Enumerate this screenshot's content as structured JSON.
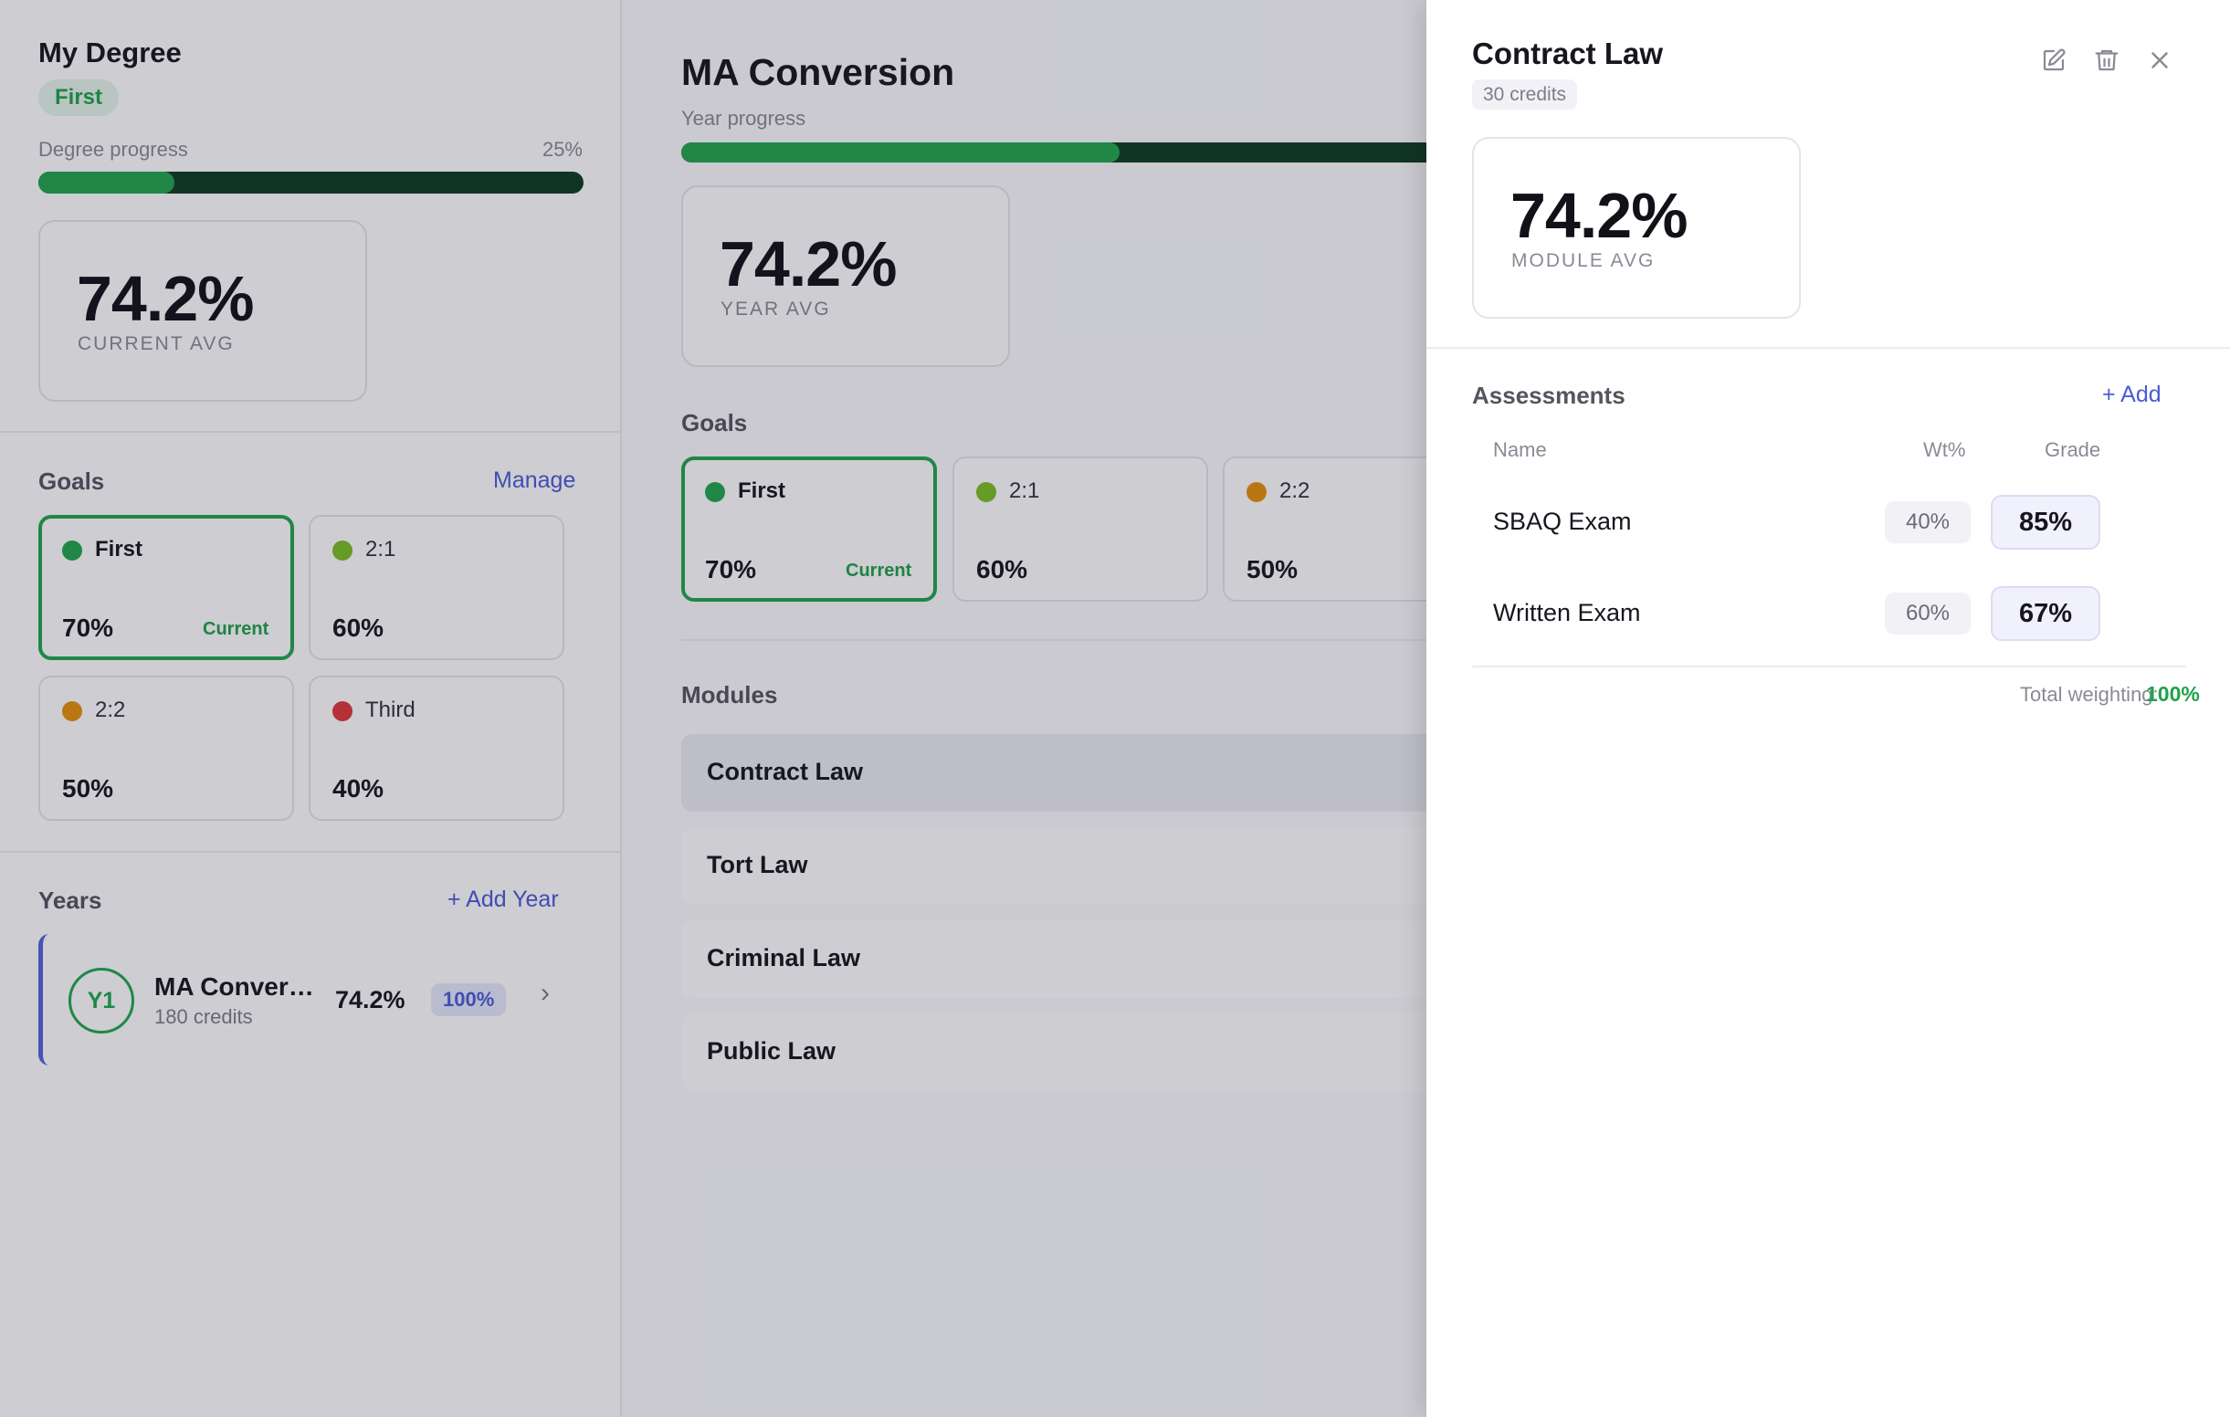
{
  "sidebar": {
    "title": "My Degree",
    "classification": "First",
    "progress_label": "Degree progress",
    "progress_pct": "25%",
    "progress_value": 25,
    "avg_value": "74.2%",
    "avg_label": "CURRENT AVG",
    "goals_title": "Goals",
    "manage_label": "Manage",
    "goals": [
      {
        "name": "First",
        "pct": "70%",
        "current": "Current",
        "color": "#22a64c"
      },
      {
        "name": "2:1",
        "pct": "60%",
        "color": "#7cbf22"
      },
      {
        "name": "2:2",
        "pct": "50%",
        "color": "#e8900c"
      },
      {
        "name": "Third",
        "pct": "40%",
        "color": "#e0383a"
      }
    ],
    "years_title": "Years",
    "add_year_label": "+ Add Year",
    "years": [
      {
        "badge": "Y1",
        "name": "MA Conver…",
        "credits": "180 credits",
        "avg": "74.2%",
        "weight": "100%"
      }
    ]
  },
  "main": {
    "title": "MA Conversion",
    "progress_label": "Year progress",
    "progress_value": 50,
    "avg_value": "74.2%",
    "avg_label": "YEAR AVG",
    "goals_title": "Goals",
    "goals": [
      {
        "name": "First",
        "pct": "70%",
        "current": "Current",
        "color": "#22a64c"
      },
      {
        "name": "2:1",
        "pct": "60%",
        "color": "#7cbf22"
      },
      {
        "name": "2:2",
        "pct": "50%",
        "color": "#e8900c"
      }
    ],
    "modules_title": "Modules",
    "modules": [
      "Contract Law",
      "Tort Law",
      "Criminal Law",
      "Public Law"
    ]
  },
  "drawer": {
    "title": "Contract Law",
    "credits": "30 credits",
    "avg_value": "74.2%",
    "avg_label": "MODULE AVG",
    "assessments_title": "Assessments",
    "add_label": "+ Add",
    "columns": {
      "name": "Name",
      "weight": "Wt%",
      "grade": "Grade"
    },
    "assessments": [
      {
        "name": "SBAQ Exam",
        "weight": "40%",
        "grade": "85%"
      },
      {
        "name": "Written Exam",
        "weight": "60%",
        "grade": "67%"
      }
    ],
    "total_label": "Total weighting:",
    "total_value": "100%",
    "icons": [
      "edit-icon",
      "trash-icon",
      "close-icon"
    ]
  },
  "colors": {
    "accent": "#4b5bd6",
    "success": "#22a64c",
    "progress_track": "#0f3d22"
  }
}
